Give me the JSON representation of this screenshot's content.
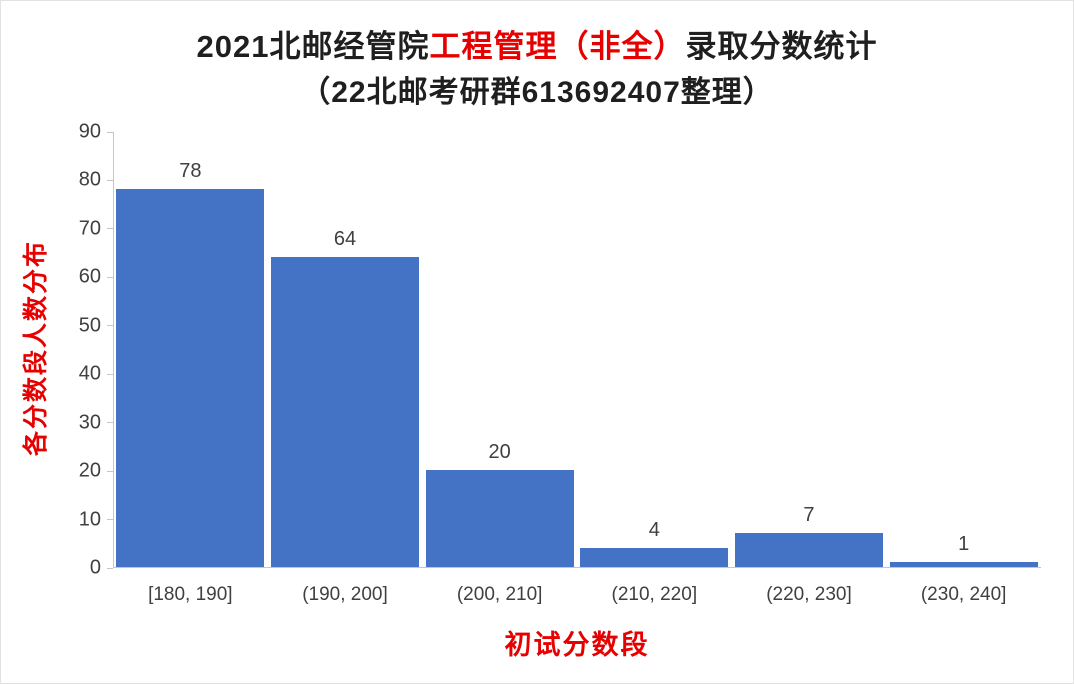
{
  "title": {
    "prefix": "2021北邮经管院",
    "highlight": "工程管理（非全）",
    "suffix": "录取分数统计",
    "subtitle": "（22北邮考研群613692407整理）"
  },
  "chart_data": {
    "type": "bar",
    "title": "2021北邮经管院工程管理（非全）录取分数统计（22北邮考研群613692407整理）",
    "categories": [
      "[180, 190]",
      "(190, 200]",
      "(200, 210]",
      "(210, 220]",
      "(220, 230]",
      "(230, 240]"
    ],
    "values": [
      78,
      64,
      20,
      4,
      7,
      1
    ],
    "xlabel": "初试分数段",
    "ylabel": "各分数段人数分布",
    "ylim": [
      0,
      90
    ],
    "ytick_step": 10,
    "yticks": [
      0,
      10,
      20,
      30,
      40,
      50,
      60,
      70,
      80,
      90
    ],
    "grid": false,
    "legend": "none",
    "bar_color": "#4472C4"
  },
  "colors": {
    "bar": "#4472C4",
    "highlight_red": "#e60000",
    "axis_text": "#404040",
    "axis_line": "#c6c6c6",
    "title_text": "#1f1f1f"
  }
}
